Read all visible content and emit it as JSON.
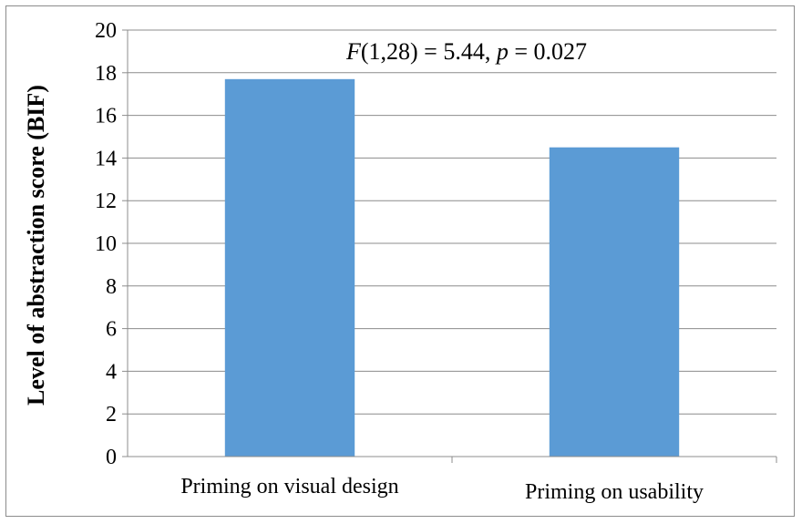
{
  "chart_data": {
    "type": "bar",
    "categories": [
      "Priming on visual design",
      "Priming on usability"
    ],
    "values": [
      17.7,
      14.5
    ],
    "ylabel": "Level of abstraction score (BIF)",
    "xlabel": "",
    "ylim": [
      0,
      20
    ],
    "yticks": [
      0,
      2,
      4,
      6,
      8,
      10,
      12,
      14,
      16,
      18,
      20
    ],
    "grid": true,
    "legend": "none",
    "bar_color": "#5b9bd5",
    "annotation": {
      "stat1_name": "F",
      "stat1_rest": "(1,28) = 5.44, ",
      "stat2_name": "p",
      "stat2_rest": " = 0.027"
    }
  }
}
